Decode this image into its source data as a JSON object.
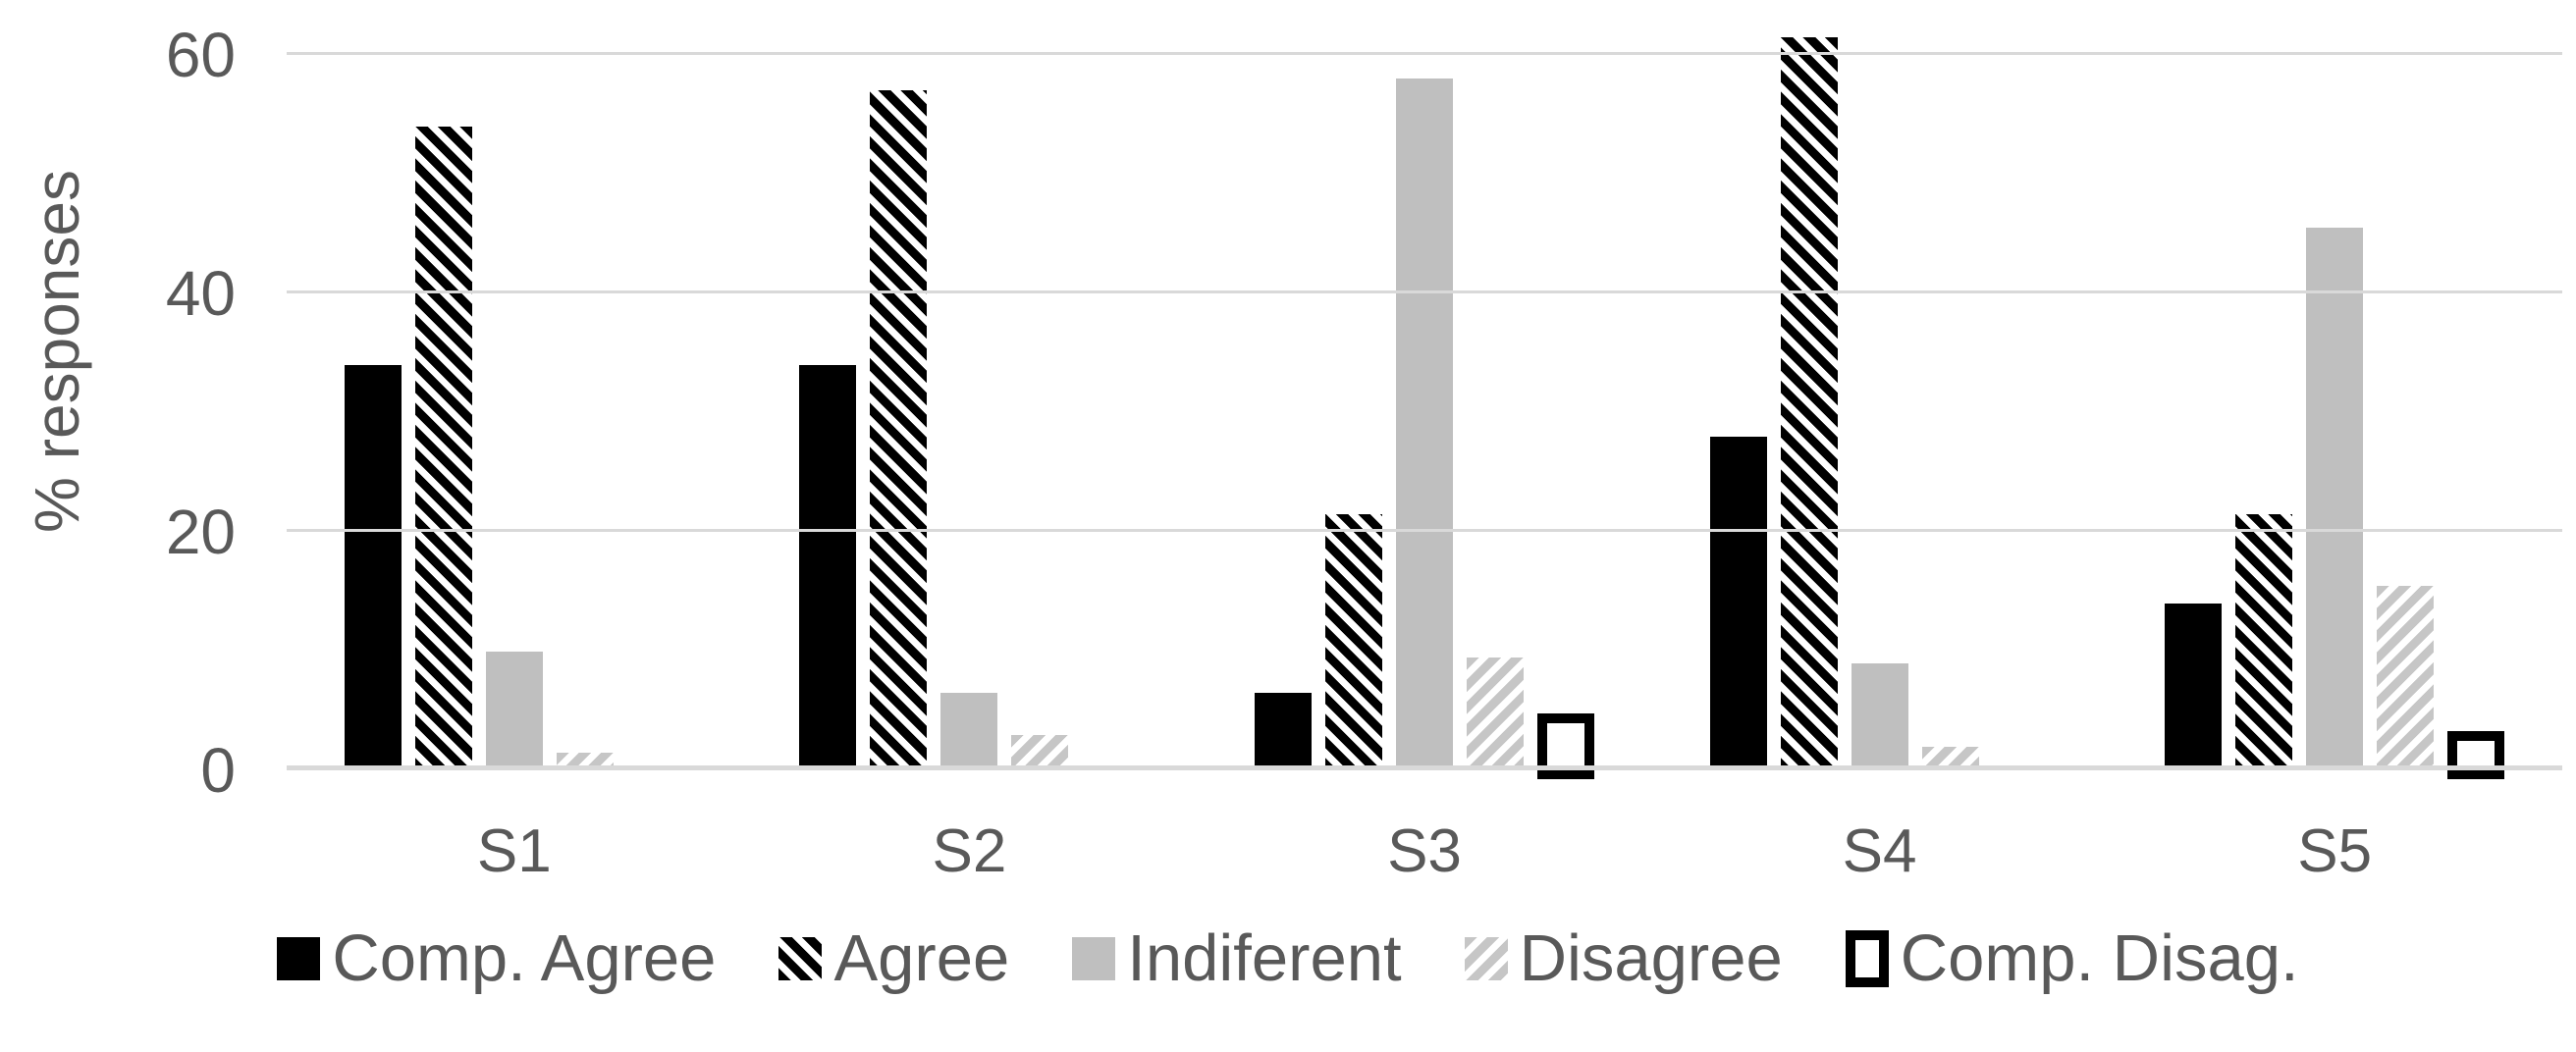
{
  "figure": {
    "background_color": "#ffffff",
    "text_color": "#595959",
    "gridline_color": "#d9d9d9"
  },
  "chart_data": {
    "type": "bar",
    "title": "",
    "xlabel": "",
    "ylabel": "% responses",
    "ylim": [
      0,
      60
    ],
    "yticks": [
      0,
      20,
      40,
      60
    ],
    "grid": "horizontal",
    "legend_position": "bottom",
    "categories": [
      "S1",
      "S2",
      "S3",
      "S4",
      "S5"
    ],
    "series": [
      {
        "name": "Comp. Agree",
        "style": "solid",
        "color": "#000000",
        "values": [
          34,
          34,
          6.5,
          28,
          14
        ]
      },
      {
        "name": "Agree",
        "style": "hatch",
        "color": "#000000",
        "hatch_angle": 45,
        "values": [
          54,
          57,
          21.5,
          61.5,
          21.5
        ]
      },
      {
        "name": "Indiferent",
        "style": "solid",
        "color": "#bfbfbf",
        "values": [
          10,
          6.5,
          58,
          9,
          45.5
        ]
      },
      {
        "name": "Disagree",
        "style": "hatch",
        "color": "#c6c6c6",
        "hatch_angle": 135,
        "values": [
          1.5,
          3,
          9.5,
          2,
          15.5
        ]
      },
      {
        "name": "Comp. Disag.",
        "style": "outline",
        "color": "#000000",
        "values": [
          0,
          0,
          5.5,
          0,
          4
        ]
      }
    ]
  }
}
